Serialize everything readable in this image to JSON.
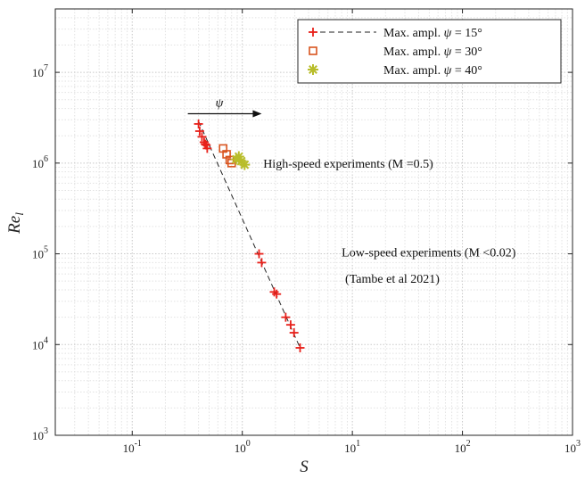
{
  "chart_data": {
    "type": "scatter",
    "xlabel": "S",
    "ylabel": "Re_l",
    "xscale": "log",
    "yscale": "log",
    "xlim": [
      0.02,
      1000
    ],
    "ylim": [
      1000,
      50000000
    ],
    "grid": true,
    "legend_position": "top-right",
    "x_ticks": [
      {
        "value": 0.1,
        "base": "10",
        "exp": "-1"
      },
      {
        "value": 1,
        "base": "10",
        "exp": "0"
      },
      {
        "value": 10,
        "base": "10",
        "exp": "1"
      },
      {
        "value": 100,
        "base": "10",
        "exp": "2"
      },
      {
        "value": 1000,
        "base": "10",
        "exp": "3"
      }
    ],
    "y_ticks": [
      {
        "value": 1000,
        "base": "10",
        "exp": "3"
      },
      {
        "value": 10000,
        "base": "10",
        "exp": "4"
      },
      {
        "value": 100000,
        "base": "10",
        "exp": "5"
      },
      {
        "value": 1000000,
        "base": "10",
        "exp": "6"
      },
      {
        "value": 10000000,
        "base": "10",
        "exp": "7"
      }
    ],
    "series": [
      {
        "name": "Max. ampl. ψ = 15°",
        "marker": "plus",
        "color": "#e8201a",
        "x": [
          0.4,
          0.41,
          0.43,
          0.45,
          0.46,
          0.47,
          0.48,
          1.42,
          1.5,
          1.95,
          2.05,
          2.48,
          2.75,
          2.95,
          3.35
        ],
        "y": [
          2700000,
          2250000,
          1950000,
          1700000,
          1620000,
          1580000,
          1450000,
          100000,
          80000,
          38000,
          36000,
          20000,
          16500,
          13500,
          9200
        ]
      },
      {
        "name": "Max. ampl. ψ = 30°",
        "marker": "square",
        "color": "#d9541e",
        "x": [
          0.67,
          0.72,
          0.77,
          0.8
        ],
        "y": [
          1450000,
          1250000,
          1080000,
          1000000
        ]
      },
      {
        "name": "Max. ampl. ψ = 40°",
        "marker": "asterisk",
        "color": "#b8bd2a",
        "x": [
          0.88,
          0.93,
          0.98,
          1.05
        ],
        "y": [
          1100000,
          1180000,
          1050000,
          960000
        ]
      }
    ],
    "fit_line": {
      "x": [
        0.4,
        3.35
      ],
      "y": [
        2900000,
        9200
      ],
      "style": "dashed",
      "color": "#222222"
    },
    "psi_arrow": {
      "label": "ψ",
      "from_x": 0.32,
      "to_x": 1.5,
      "y": 3500000
    },
    "annotations": {
      "high_speed": {
        "text": "High-speed experiments (M =0.5)",
        "x": 1.55,
        "y": 1000000
      },
      "low_speed_1": {
        "text": "Low-speed experiments (M  <0.02)",
        "x": 8.0,
        "y": 105000
      },
      "low_speed_2": {
        "text": "(Tambe et al 2021)",
        "x": 8.6,
        "y": 54000
      }
    }
  }
}
